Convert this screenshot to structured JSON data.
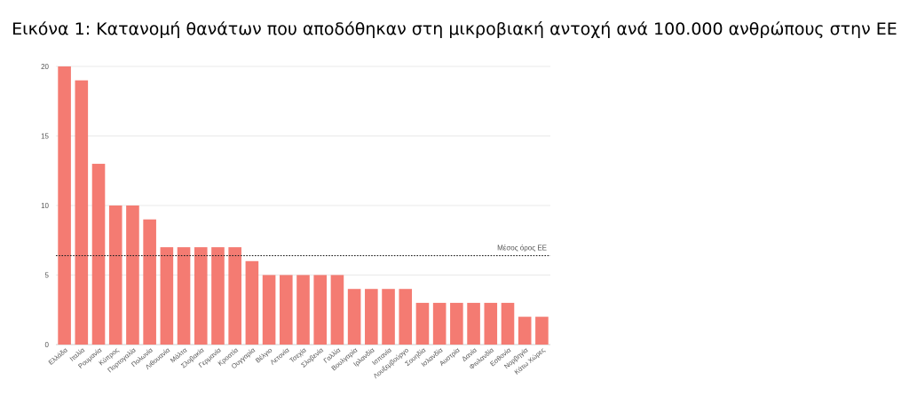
{
  "figure": {
    "caption": "Εικόνα 1: Κατανομή  θανάτων που αποδόθηκαν στη μικροβιακή αντοχή ανά 100.000 ανθρώπους στην ΕΕ"
  },
  "chart_data": {
    "type": "bar",
    "title": "",
    "xlabel": "",
    "ylabel": "",
    "ylim": [
      0,
      20
    ],
    "yticks": [
      0,
      5,
      10,
      15,
      20
    ],
    "grid": true,
    "bar_color": "#f47b72",
    "categories": [
      "Ελλάδα",
      "Ιταλία",
      "Ρουμανία",
      "Κύπρος",
      "Πορτογαλία",
      "Πολωνία",
      "Λιθουανία",
      "Μάλτα",
      "Σλοβακία",
      "Γερμανία",
      "Κροατία",
      "Ουγγαρία",
      "Βέλγιο",
      "Λετονία",
      "Τσεχία",
      "Σλοβενία",
      "Γαλλία",
      "Βουλγαρία",
      "Ιρλανδία",
      "Ισπανία",
      "Λουξεμβούργο",
      "Σουηδία",
      "Ισλανδία",
      "Αυστρία",
      "Δανία",
      "Φινλανδία",
      "Εσθονία",
      "Νορβηγία",
      "Κάτω Χώρες"
    ],
    "values": [
      20,
      19,
      13,
      10,
      10,
      9,
      7,
      7,
      7,
      7,
      7,
      6,
      5,
      5,
      5,
      5,
      5,
      4,
      4,
      4,
      4,
      3,
      3,
      3,
      3,
      3,
      3,
      2,
      2
    ],
    "reference_line": {
      "label": "Μέσος όρος ΕΕ",
      "value": 6.4,
      "style": "dotted"
    }
  }
}
